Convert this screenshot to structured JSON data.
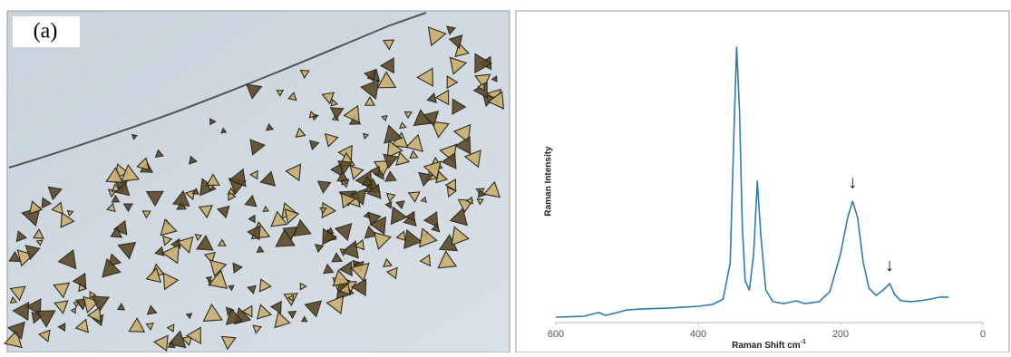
{
  "image_label": "(a)",
  "chart_data": {
    "type": "line",
    "x_label": "Raman Shift cm",
    "x_label_superscript": "-1",
    "y_label": "Raman Intensity",
    "x": [
      600,
      560,
      540,
      530,
      500,
      480,
      440,
      400,
      380,
      365,
      355,
      350,
      346,
      342,
      338,
      334,
      328,
      322,
      317,
      312,
      305,
      295,
      280,
      262,
      250,
      230,
      215,
      200,
      190,
      183,
      176,
      168,
      160,
      150,
      140,
      131,
      124,
      115,
      100,
      80,
      60,
      48
    ],
    "series": [
      {
        "color": "#2f7cb3",
        "values": [
          1.9,
          2.2,
          3.5,
          2.5,
          4.4,
          4.7,
          5.1,
          5.7,
          6.3,
          8.2,
          20.9,
          65,
          96.2,
          74.7,
          33.5,
          14.6,
          11.4,
          24,
          49.4,
          30.4,
          11.4,
          7.3,
          6.6,
          7.6,
          6.6,
          7.3,
          10.8,
          24,
          36.7,
          42.4,
          36.7,
          20.9,
          12,
          9.5,
          11.4,
          13.6,
          9.8,
          7.6,
          7.3,
          7.9,
          8.9,
          8.9
        ]
      }
    ],
    "xlim": [
      600,
      0
    ],
    "xticks": [
      600,
      400,
      200,
      0
    ],
    "ylim": [
      0,
      100
    ],
    "annotations": [
      {
        "text": "↓",
        "x": 183,
        "y": 48
      },
      {
        "text": "↓",
        "x": 131,
        "y": 19
      }
    ]
  }
}
